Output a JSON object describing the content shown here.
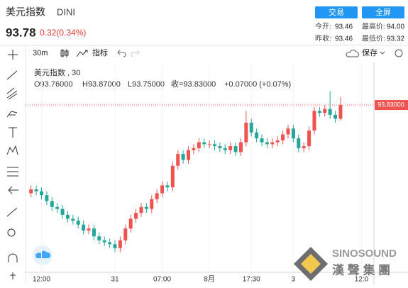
{
  "header": {
    "name": "美元指数",
    "code": "DINI",
    "price": "93.78",
    "change": "0.32(0.34%)",
    "buttons": [
      "交易",
      "全屏"
    ],
    "stats": [
      [
        "今开:",
        "93.46"
      ],
      [
        "最高价:",
        "94.00"
      ],
      [
        "昨收:",
        "93.46"
      ],
      [
        "最低价:",
        "93.32"
      ]
    ]
  },
  "toolbar": {
    "interval": "30m",
    "indicators": "指标",
    "save": "保存"
  },
  "legend": {
    "title": "美元指数 , 30",
    "open": "O93.76000",
    "high": "H93.87000",
    "low": "L93.75000",
    "close": "收=93.83000",
    "change": "+0.07000 (+0.07%)"
  },
  "watermark": {
    "brand": "SINOSOUND",
    "name": "漢 聲 集 團"
  },
  "chart_data": {
    "type": "candlestick",
    "up_color": "#ef5350",
    "down_color": "#26a69a",
    "price_label": "93.83000",
    "ylim": [
      92.98,
      94.04
    ],
    "categories": [
      null,
      null,
      "12:00",
      null,
      null,
      null,
      null,
      null,
      null,
      null,
      null,
      null,
      null,
      null,
      null,
      null,
      "31",
      null,
      null,
      null,
      null,
      null,
      null,
      null,
      null,
      "07:00",
      null,
      null,
      null,
      null,
      null,
      null,
      null,
      null,
      "8月",
      null,
      null,
      null,
      null,
      null,
      null,
      null,
      "17:30",
      null,
      null,
      null,
      null,
      null,
      null,
      null,
      "3",
      null,
      null,
      null,
      null,
      null,
      null,
      null,
      null,
      null,
      null,
      null,
      null,
      "12:0",
      null,
      null
    ],
    "open": [
      93.38,
      93.4,
      93.39,
      93.37,
      93.34,
      93.31,
      93.3,
      93.27,
      93.25,
      93.24,
      93.22,
      93.19,
      93.2,
      93.16,
      93.14,
      93.13,
      93.12,
      93.1,
      93.14,
      93.2,
      93.25,
      93.28,
      93.31,
      93.3,
      93.35,
      93.38,
      93.42,
      93.41,
      93.52,
      93.58,
      93.55,
      93.6,
      93.61,
      93.64,
      93.63,
      93.63,
      93.62,
      93.61,
      93.6,
      93.62,
      93.59,
      93.64,
      93.74,
      93.69,
      93.66,
      93.64,
      93.63,
      93.64,
      93.65,
      93.68,
      93.71,
      93.66,
      93.61,
      93.62,
      93.7,
      93.8,
      93.79,
      93.81,
      93.78,
      93.76,
      null,
      null,
      null,
      null,
      null,
      null
    ],
    "high": [
      93.42,
      93.42,
      93.41,
      93.39,
      93.36,
      93.33,
      93.32,
      93.29,
      93.27,
      93.26,
      93.24,
      93.22,
      93.22,
      93.18,
      93.16,
      93.15,
      93.14,
      93.16,
      93.22,
      93.27,
      93.3,
      93.33,
      93.33,
      93.37,
      93.4,
      93.44,
      93.44,
      93.54,
      93.6,
      93.6,
      93.62,
      93.63,
      93.66,
      93.66,
      93.65,
      93.65,
      93.64,
      93.63,
      93.64,
      93.64,
      93.66,
      93.8,
      93.76,
      93.71,
      93.68,
      93.66,
      93.66,
      93.67,
      93.7,
      93.73,
      93.73,
      93.68,
      93.64,
      93.72,
      93.82,
      93.82,
      93.83,
      93.9,
      93.8,
      93.87,
      null,
      null,
      null,
      null,
      null,
      null
    ],
    "low": [
      93.36,
      93.37,
      93.35,
      93.32,
      93.29,
      93.28,
      93.25,
      93.23,
      93.22,
      93.2,
      93.17,
      93.17,
      93.14,
      93.12,
      93.11,
      93.1,
      93.08,
      93.08,
      93.12,
      93.18,
      93.23,
      93.26,
      93.28,
      93.28,
      93.33,
      93.36,
      93.39,
      93.39,
      93.5,
      93.53,
      93.53,
      93.58,
      93.59,
      93.61,
      93.61,
      93.6,
      93.59,
      93.58,
      93.58,
      93.57,
      93.57,
      93.62,
      93.67,
      93.64,
      93.62,
      93.61,
      93.61,
      93.62,
      93.63,
      93.66,
      93.64,
      93.59,
      93.59,
      93.6,
      93.68,
      93.77,
      93.77,
      93.76,
      93.74,
      93.75,
      null,
      null,
      null,
      null,
      null,
      null
    ],
    "close": [
      93.4,
      93.39,
      93.37,
      93.34,
      93.31,
      93.3,
      93.27,
      93.25,
      93.24,
      93.22,
      93.19,
      93.2,
      93.16,
      93.14,
      93.13,
      93.12,
      93.1,
      93.14,
      93.2,
      93.25,
      93.28,
      93.31,
      93.3,
      93.35,
      93.38,
      93.42,
      93.41,
      93.52,
      93.58,
      93.55,
      93.6,
      93.61,
      93.64,
      93.63,
      93.63,
      93.62,
      93.61,
      93.6,
      93.62,
      93.59,
      93.64,
      93.74,
      93.69,
      93.66,
      93.64,
      93.63,
      93.64,
      93.65,
      93.68,
      93.71,
      93.66,
      93.61,
      93.62,
      93.7,
      93.8,
      93.79,
      93.81,
      93.78,
      93.76,
      93.83,
      null,
      null,
      null,
      null,
      null,
      null
    ]
  }
}
